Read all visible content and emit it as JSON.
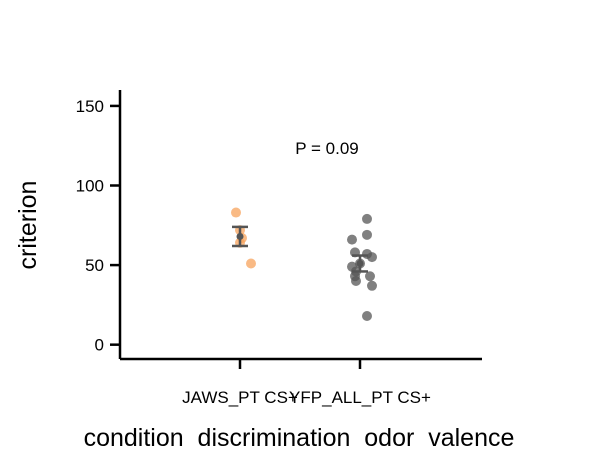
{
  "chart_data": {
    "type": "scatter",
    "title": "",
    "xlabel": "condition  discrimination  odor  valence",
    "ylabel": "criterion",
    "categories": [
      "JAWS_PT CS+",
      "YFP_ALL_PT CS+"
    ],
    "ylim": [
      -9,
      160
    ],
    "yticks": [
      0,
      50,
      100,
      150
    ],
    "grid": false,
    "legend": "none",
    "colors": {
      "JAWS_PT CS+": "#f7a35c",
      "YFP_ALL_PT CS+": "#555555",
      "error_bar": "#555555"
    },
    "series": [
      {
        "category": "JAWS_PT CS+",
        "values": [
          83,
          72,
          67,
          64,
          51
        ],
        "mean": 68,
        "sem": [
          62,
          74
        ]
      },
      {
        "category": "YFP_ALL_PT CS+",
        "values": [
          79,
          69,
          66,
          58,
          57,
          55,
          51,
          49,
          46,
          43,
          43,
          40,
          37,
          18
        ],
        "mean": 51,
        "sem": [
          46,
          56
        ]
      }
    ],
    "annotations": [
      {
        "text": "P = 0.09"
      }
    ]
  }
}
